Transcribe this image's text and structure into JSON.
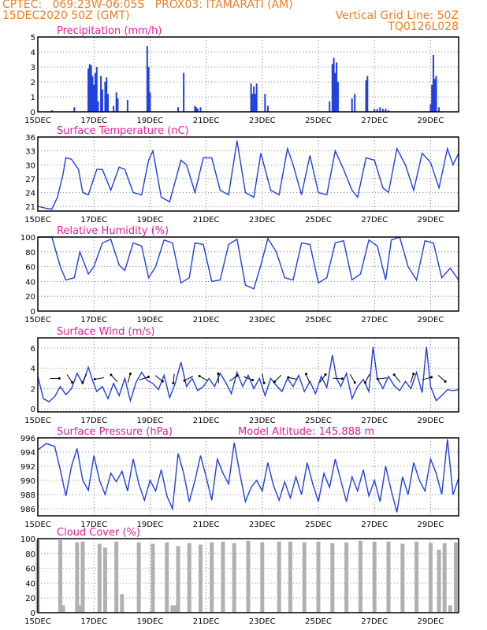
{
  "header": {
    "left_line1": "CPTEC:   069:23W-06:05S   PROX03: ITAMARATI (AM)",
    "left_line2": "15DEC2020 50Z (GMT)",
    "right_line2": "Vertical Grid Line: 50Z",
    "right_line3": "TQ0126L028"
  },
  "panels": [
    {
      "title": "Precipitation (mm/h)",
      "extra": ""
    },
    {
      "title": "Surface Temperature (nC)",
      "extra": ""
    },
    {
      "title": "Relative Humidity (%)",
      "extra": ""
    },
    {
      "title": "Surface Wind (m/s)",
      "extra": ""
    },
    {
      "title": "Surface Pressure (hPa)",
      "extra": "Model Altitude: 145.888 m"
    },
    {
      "title": "Cloud Cover (%)",
      "extra": ""
    }
  ],
  "chart_data": [
    {
      "type": "bar",
      "title": "Precipitation (mm/h)",
      "x_labels": [
        "15DEC",
        "17DEC",
        "19DEC",
        "21DEC",
        "23DEC",
        "25DEC",
        "27DEC",
        "29DEC"
      ],
      "x_range_days": [
        0,
        15
      ],
      "ylim": [
        0,
        5
      ],
      "yticks": [
        0,
        1,
        2,
        3,
        4,
        5
      ],
      "color": "#2040e0",
      "series": [
        {
          "x": [
            0.5,
            1.3,
            1.8,
            1.85,
            1.9,
            1.95,
            2.0,
            2.05,
            2.1,
            2.15,
            2.25,
            2.3,
            2.4,
            2.45,
            2.5,
            2.7,
            2.8,
            2.85,
            3.2,
            3.9,
            3.95,
            4.0,
            5.0,
            5.2,
            5.6,
            5.65,
            5.7,
            5.8,
            7.6,
            7.65,
            7.7,
            7.75,
            7.8,
            8.1,
            8.2,
            10.4,
            10.5,
            10.55,
            10.6,
            10.65,
            10.7,
            11.2,
            11.3,
            11.7,
            11.75,
            12.0,
            12.1,
            12.2,
            12.3,
            12.4,
            12.5,
            14.0,
            14.05,
            14.1,
            14.15,
            14.2,
            14.3
          ],
          "values": [
            0.1,
            0.3,
            2.9,
            3.2,
            3.1,
            2.4,
            1.8,
            2.6,
            3.0,
            0.7,
            2.4,
            1.5,
            2.0,
            2.3,
            1.2,
            0.4,
            1.3,
            0.9,
            0.8,
            4.4,
            3.0,
            1.3,
            0.3,
            2.6,
            0.4,
            0.3,
            0.2,
            0.3,
            1.9,
            1.2,
            1.7,
            1.2,
            1.9,
            1.2,
            0.4,
            0.7,
            3.2,
            3.6,
            2.6,
            3.3,
            2.0,
            0.9,
            1.2,
            2.1,
            2.4,
            0.2,
            0.2,
            0.3,
            0.2,
            0.2,
            0.1,
            0.5,
            1.8,
            3.8,
            2.2,
            2.4,
            0.3
          ]
        }
      ]
    },
    {
      "type": "line",
      "title": "Surface Temperature (nC)",
      "x_labels": [
        "15DEC",
        "17DEC",
        "19DEC",
        "21DEC",
        "23DEC",
        "25DEC",
        "27DEC",
        "29DEC"
      ],
      "x_range_days": [
        0,
        15
      ],
      "ylim": [
        20,
        36
      ],
      "yticks": [
        21,
        24,
        27,
        30,
        33,
        36
      ],
      "series": [
        {
          "name": "",
          "x": [
            0,
            0.3,
            0.5,
            0.7,
            0.9,
            1.0,
            1.2,
            1.45,
            1.6,
            1.8,
            2.1,
            2.3,
            2.6,
            2.9,
            3.1,
            3.4,
            3.7,
            3.95,
            4.1,
            4.4,
            4.7,
            5.1,
            5.3,
            5.6,
            5.9,
            6.2,
            6.5,
            6.8,
            7.1,
            7.4,
            7.7,
            7.95,
            8.3,
            8.6,
            8.9,
            9.1,
            9.4,
            9.7,
            10.0,
            10.3,
            10.6,
            10.9,
            11.2,
            11.4,
            11.7,
            12.0,
            12.3,
            12.5,
            12.8,
            13.1,
            13.4,
            13.7,
            14.0,
            14.3,
            14.6,
            14.8,
            15.0
          ],
          "values": [
            21,
            20.6,
            20.4,
            23,
            28,
            31.5,
            31.2,
            29,
            24,
            23.5,
            29,
            29,
            24.5,
            29.5,
            29,
            24,
            23.5,
            31,
            33,
            23,
            22,
            31,
            30,
            24,
            31.5,
            31.5,
            24.5,
            23.5,
            35.2,
            24,
            23,
            32.5,
            24.5,
            23.5,
            33.5,
            30,
            23.5,
            32,
            24,
            23.5,
            33,
            29,
            24.5,
            23,
            31.5,
            31,
            25,
            24,
            33.5,
            30,
            24.5,
            32.5,
            30.5,
            25,
            33.5,
            30,
            32.5
          ]
        }
      ]
    },
    {
      "type": "line",
      "title": "Relative Humidity (%)",
      "x_labels": [
        "15DEC",
        "17DEC",
        "19DEC",
        "21DEC",
        "23DEC",
        "25DEC",
        "27DEC",
        "29DEC"
      ],
      "x_range_days": [
        0,
        15
      ],
      "ylim": [
        0,
        100
      ],
      "yticks": [
        0,
        20,
        40,
        60,
        80,
        100
      ],
      "series": [
        {
          "name": "",
          "x": [
            0,
            0.5,
            0.8,
            1.0,
            1.3,
            1.5,
            1.8,
            2.0,
            2.3,
            2.6,
            2.9,
            3.1,
            3.4,
            3.7,
            3.95,
            4.2,
            4.5,
            4.8,
            5.1,
            5.4,
            5.6,
            5.9,
            6.2,
            6.5,
            6.8,
            7.1,
            7.4,
            7.7,
            7.95,
            8.2,
            8.5,
            8.8,
            9.1,
            9.4,
            9.7,
            10.0,
            10.3,
            10.6,
            10.9,
            11.2,
            11.5,
            11.8,
            12.1,
            12.4,
            12.6,
            12.9,
            13.2,
            13.5,
            13.8,
            14.1,
            14.4,
            14.7,
            15.0
          ],
          "values": [
            100,
            100,
            60,
            42,
            45,
            80,
            50,
            60,
            92,
            97,
            62,
            55,
            92,
            88,
            45,
            60,
            96,
            92,
            38,
            45,
            92,
            90,
            40,
            42,
            90,
            97,
            35,
            30,
            62,
            98,
            80,
            45,
            42,
            92,
            90,
            38,
            45,
            92,
            95,
            42,
            50,
            96,
            88,
            42,
            96,
            100,
            60,
            42,
            95,
            92,
            45,
            58,
            42
          ]
        }
      ]
    },
    {
      "type": "line",
      "title": "Surface Wind (m/s)",
      "x_labels": [
        "15DEC",
        "17DEC",
        "19DEC",
        "21DEC",
        "23DEC",
        "25DEC",
        "27DEC",
        "29DEC"
      ],
      "x_range_days": [
        0,
        15
      ],
      "ylim": [
        -0.3,
        7
      ],
      "yticks": [
        0,
        2,
        4,
        6
      ],
      "series": [
        {
          "name": "",
          "x": [
            0,
            0.2,
            0.4,
            0.6,
            0.8,
            1.0,
            1.2,
            1.4,
            1.6,
            1.8,
            1.95,
            2.1,
            2.3,
            2.5,
            2.7,
            2.9,
            3.1,
            3.3,
            3.5,
            3.7,
            3.9,
            4.1,
            4.3,
            4.5,
            4.7,
            4.9,
            5.1,
            5.3,
            5.5,
            5.7,
            5.9,
            6.1,
            6.3,
            6.5,
            6.7,
            6.9,
            7.1,
            7.3,
            7.5,
            7.7,
            7.9,
            8.1,
            8.3,
            8.5,
            8.7,
            8.9,
            9.1,
            9.3,
            9.5,
            9.7,
            9.9,
            10.1,
            10.3,
            10.5,
            10.65,
            10.8,
            11.0,
            11.2,
            11.4,
            11.6,
            11.8,
            11.95,
            12.1,
            12.3,
            12.5,
            12.7,
            12.9,
            13.1,
            13.3,
            13.5,
            13.7,
            13.85,
            14.0,
            14.2,
            14.4,
            14.6,
            14.8,
            15.0
          ],
          "values": [
            3.2,
            1.0,
            0.7,
            1.2,
            2.2,
            1.4,
            2.0,
            3.5,
            2.5,
            4.1,
            2.8,
            1.7,
            2.2,
            1.0,
            2.5,
            1.3,
            3.0,
            0.8,
            2.6,
            3.6,
            2.8,
            2.5,
            1.9,
            3.3,
            1.1,
            2.5,
            4.6,
            2.2,
            3.0,
            1.8,
            2.2,
            3.0,
            2.2,
            3.5,
            2.6,
            1.5,
            3.6,
            2.2,
            3.3,
            2.0,
            3.0,
            1.3,
            3.0,
            2.3,
            1.7,
            3.0,
            2.2,
            3.3,
            1.7,
            2.7,
            1.5,
            3.2,
            2.1,
            5.3,
            3.0,
            2.2,
            3.5,
            1.0,
            2.2,
            2.9,
            1.7,
            6.1,
            3.0,
            2.0,
            3.2,
            2.3,
            1.8,
            2.7,
            2.0,
            3.6,
            1.6,
            6.1,
            2.2,
            0.8,
            1.3,
            1.9,
            1.8,
            1.9
          ]
        }
      ],
      "wind_arrows": {
        "count": 27,
        "y_value": 3.0
      }
    },
    {
      "type": "line",
      "title": "Surface Pressure (hPa)",
      "annotation": "Model Altitude: 145.888 m",
      "x_labels": [
        "15DEC",
        "17DEC",
        "19DEC",
        "21DEC",
        "23DEC",
        "25DEC",
        "27DEC",
        "29DEC"
      ],
      "x_range_days": [
        0,
        15
      ],
      "ylim": [
        985,
        996
      ],
      "yticks": [
        986,
        988,
        990,
        992,
        994,
        996
      ],
      "series": [
        {
          "name": "",
          "x": [
            0,
            0.3,
            0.6,
            0.8,
            1.0,
            1.2,
            1.4,
            1.6,
            1.8,
            2.0,
            2.2,
            2.4,
            2.6,
            2.8,
            3.0,
            3.2,
            3.4,
            3.6,
            3.8,
            4.0,
            4.2,
            4.4,
            4.6,
            4.8,
            5.0,
            5.2,
            5.4,
            5.6,
            5.8,
            6.0,
            6.2,
            6.4,
            6.6,
            6.8,
            7.0,
            7.2,
            7.4,
            7.6,
            7.8,
            8.0,
            8.2,
            8.4,
            8.6,
            8.8,
            9.0,
            9.2,
            9.4,
            9.6,
            9.8,
            10.0,
            10.2,
            10.4,
            10.6,
            10.8,
            11.0,
            11.2,
            11.4,
            11.6,
            11.8,
            12.0,
            12.2,
            12.4,
            12.6,
            12.8,
            13.0,
            13.2,
            13.4,
            13.6,
            13.8,
            14.0,
            14.2,
            14.4,
            14.6,
            14.8,
            15.0
          ],
          "values": [
            994.3,
            995.2,
            994.8,
            991.5,
            987.8,
            992.0,
            994.5,
            990.0,
            988.6,
            993.5,
            990.0,
            988.0,
            991.0,
            989.8,
            991.3,
            988.5,
            993.0,
            989.5,
            987.2,
            990.0,
            988.5,
            991.5,
            987.8,
            986.0,
            993.8,
            991.0,
            987.0,
            990.0,
            993.5,
            990.5,
            987.2,
            993.0,
            991.0,
            989.5,
            995.3,
            991.0,
            987.0,
            989.0,
            990.0,
            988.5,
            992.5,
            989.3,
            987.2,
            989.8,
            987.5,
            990.5,
            988.0,
            992.5,
            989.5,
            987.0,
            991.0,
            989.0,
            993.0,
            990.0,
            987.0,
            990.5,
            988.5,
            991.5,
            987.8,
            990.0,
            987.0,
            992.0,
            988.5,
            985.5,
            990.5,
            988.0,
            992.5,
            990.0,
            988.5,
            993.0,
            991.0,
            988.0,
            995.8,
            988.0,
            990.3
          ]
        }
      ]
    },
    {
      "type": "bar",
      "title": "Cloud Cover (%)",
      "x_labels": [
        "15DEC",
        "17DEC",
        "19DEC",
        "21DEC",
        "23DEC",
        "25DEC",
        "27DEC",
        "29DEC"
      ],
      "x_range_days": [
        0,
        15
      ],
      "ylim": [
        0,
        100
      ],
      "yticks": [
        0,
        20,
        40,
        60,
        80,
        100
      ],
      "color": "#b0b0b0",
      "series": [
        {
          "x": [
            0,
            0.8,
            0.9,
            1.4,
            1.5,
            1.6,
            2.2,
            2.4,
            2.8,
            3.0,
            3.6,
            4.1,
            4.6,
            4.8,
            4.85,
            4.9,
            5.0,
            5.4,
            5.8,
            6.2,
            6.6,
            7.0,
            7.5,
            8.0,
            8.6,
            9.0,
            9.5,
            10.0,
            10.5,
            11.0,
            11.5,
            12.0,
            12.5,
            13.0,
            13.5,
            14.0,
            14.3,
            14.5,
            14.7,
            14.9
          ],
          "values": [
            98,
            98,
            10,
            95,
            10,
            96,
            93,
            88,
            96,
            25,
            95,
            93,
            95,
            10,
            5,
            10,
            90,
            94,
            92,
            95,
            96,
            94,
            97,
            95,
            96,
            96,
            95,
            96,
            94,
            95,
            97,
            96,
            96,
            93,
            96,
            94,
            85,
            94,
            10,
            95
          ]
        }
      ]
    }
  ]
}
